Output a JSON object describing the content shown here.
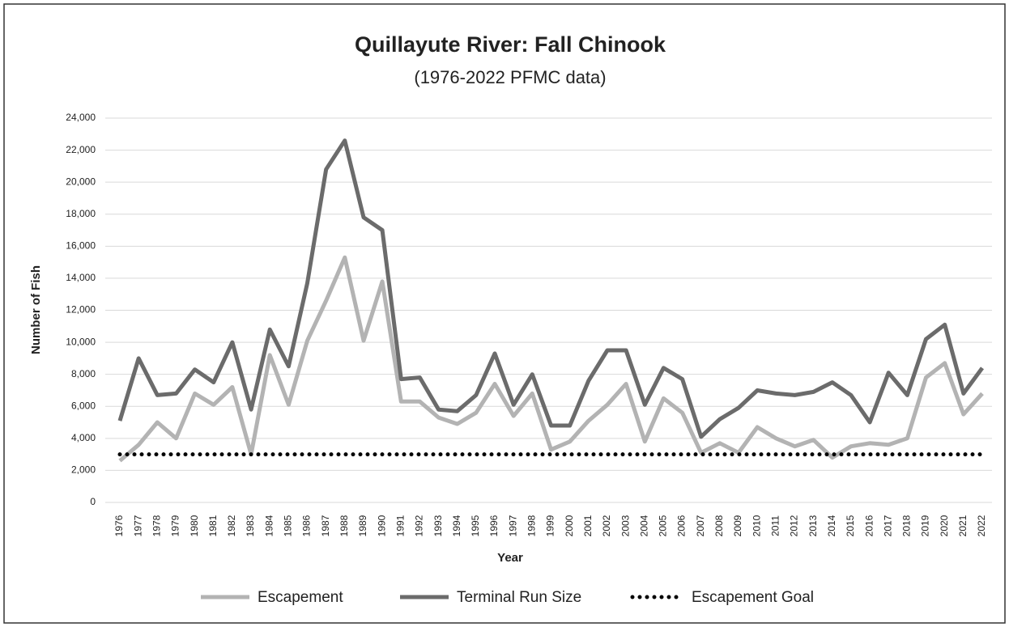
{
  "chart_data": {
    "type": "line",
    "title": "Quillayute River: Fall Chinook",
    "subtitle": "(1976-2022 PFMC data)",
    "x_label": "Year",
    "y_label": "Number of Fish",
    "categories": [
      "1976",
      "1977",
      "1978",
      "1979",
      "1980",
      "1981",
      "1982",
      "1983",
      "1984",
      "1985",
      "1986",
      "1987",
      "1988",
      "1989",
      "1990",
      "1991",
      "1992",
      "1993",
      "1994",
      "1995",
      "1996",
      "1997",
      "1998",
      "1999",
      "2000",
      "2001",
      "2002",
      "2003",
      "2004",
      "2005",
      "2006",
      "2007",
      "2008",
      "2009",
      "2010",
      "2011",
      "2012",
      "2013",
      "2014",
      "2015",
      "2016",
      "2017",
      "2018",
      "2019",
      "2020",
      "2021",
      "2022"
    ],
    "series": [
      {
        "name": "Escapement",
        "color": "#b3b3b3",
        "style": "solid",
        "values": [
          2600,
          3600,
          5000,
          4000,
          6800,
          6100,
          7200,
          3000,
          9200,
          6100,
          10100,
          12600,
          15300,
          10100,
          13800,
          6300,
          6300,
          5300,
          4900,
          5600,
          7400,
          5400,
          6800,
          3300,
          3800,
          5100,
          6100,
          7400,
          3800,
          6500,
          5600,
          3100,
          3700,
          3100,
          4700,
          4000,
          3500,
          3900,
          2800,
          3500,
          3700,
          3600,
          4000,
          7800,
          8700,
          5500,
          6800
        ]
      },
      {
        "name": "Terminal Run Size",
        "color": "#6b6b6b",
        "style": "solid",
        "values": [
          5100,
          9000,
          6700,
          6800,
          8300,
          7500,
          10000,
          5800,
          10800,
          8500,
          13700,
          20800,
          22600,
          17800,
          17000,
          7700,
          7800,
          5800,
          5700,
          6700,
          9300,
          6100,
          8000,
          4800,
          4800,
          7600,
          9500,
          9500,
          6100,
          8400,
          7700,
          4100,
          5200,
          5900,
          7000,
          6800,
          6700,
          6900,
          7500,
          6700,
          5000,
          8100,
          6700,
          10200,
          11100,
          6800,
          8400
        ]
      },
      {
        "name": "Escapement Goal",
        "color": "#000000",
        "style": "dotted",
        "values": [
          3000,
          3000,
          3000,
          3000,
          3000,
          3000,
          3000,
          3000,
          3000,
          3000,
          3000,
          3000,
          3000,
          3000,
          3000,
          3000,
          3000,
          3000,
          3000,
          3000,
          3000,
          3000,
          3000,
          3000,
          3000,
          3000,
          3000,
          3000,
          3000,
          3000,
          3000,
          3000,
          3000,
          3000,
          3000,
          3000,
          3000,
          3000,
          3000,
          3000,
          3000,
          3000,
          3000,
          3000,
          3000,
          3000,
          3000
        ]
      }
    ],
    "ylim": [
      0,
      24000
    ],
    "yticks": [
      0,
      {
        "value": 2000,
        "label": "2,000"
      },
      {
        "value": 4000,
        "label": "4,000"
      },
      {
        "value": 6000,
        "label": "6,000"
      },
      {
        "value": 8000,
        "label": "8,000"
      },
      {
        "value": 10000,
        "label": "10,000"
      },
      {
        "value": 12000,
        "label": "12,000"
      },
      {
        "value": 14000,
        "label": "14,000"
      },
      {
        "value": 16000,
        "label": "16,000"
      },
      {
        "value": 18000,
        "label": "18,000"
      },
      {
        "value": 20000,
        "label": "20,000"
      },
      {
        "value": 22000,
        "label": "22,000"
      },
      {
        "value": 24000,
        "label": "24,000"
      }
    ],
    "grid": true,
    "legend": "bottom"
  }
}
